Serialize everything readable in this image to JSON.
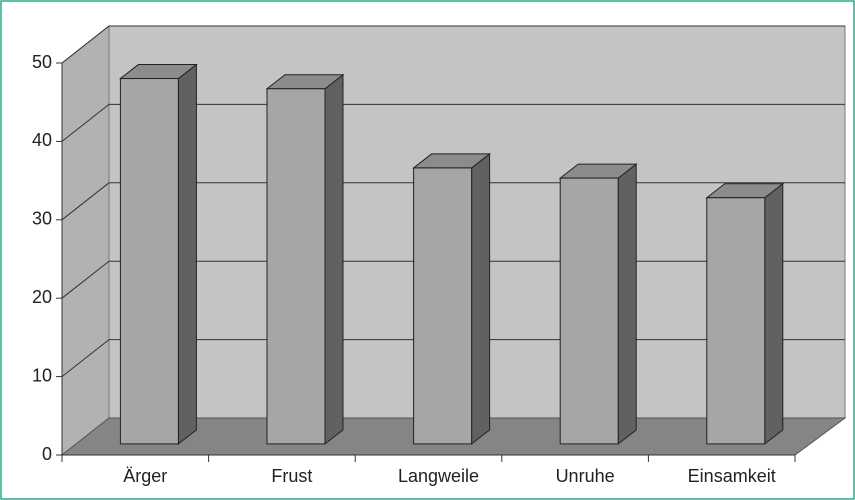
{
  "chart_data": {
    "type": "bar3d",
    "categories": [
      "Ärger",
      "Frust",
      "Langweile",
      "Unruhe",
      "Einsamkeit"
    ],
    "values": [
      46.6,
      45.3,
      35.2,
      33.9,
      31.4
    ],
    "color": "#a6a6a6",
    "ylim": [
      0,
      50
    ],
    "yticks": [
      0,
      10,
      20,
      30,
      40,
      50
    ],
    "grid": true
  }
}
